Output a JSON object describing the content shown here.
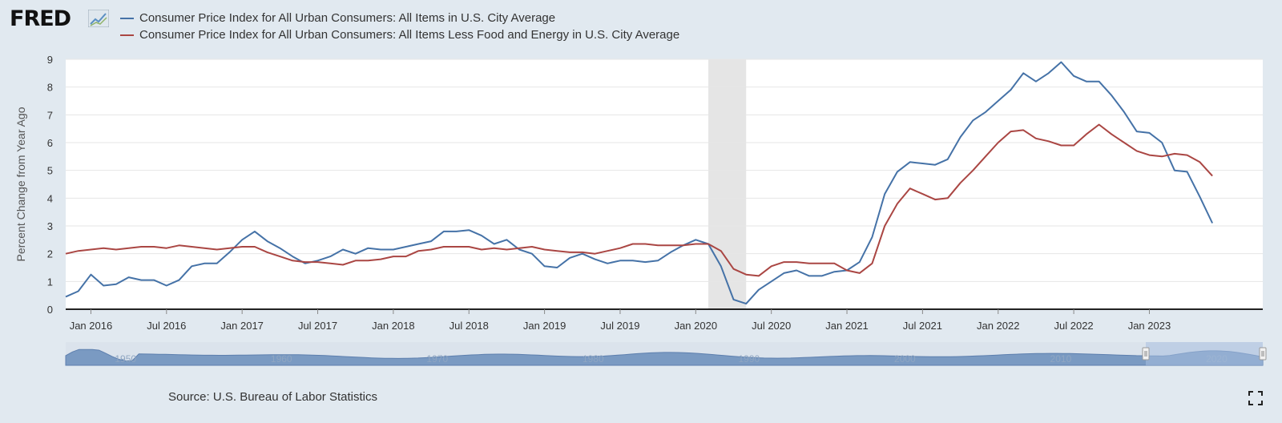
{
  "brand": {
    "logo_text": "FRED",
    "logo_icon": "chart-line-icon"
  },
  "source_text": "Source: U.S. Bureau of Labor Statistics",
  "fullscreen_icon": "fullscreen-icon",
  "colors": {
    "background": "#e1e9f0",
    "plot_bg": "#ffffff",
    "series1": "#4572a7",
    "series2": "#aa4643",
    "recession": "#e5e5e5",
    "navigator_fill": "#7a9ac2",
    "navigator_window": "#a8c0e0"
  },
  "chart_data": {
    "type": "line",
    "ylabel": "Percent Change from Year Ago",
    "ylim": [
      0,
      9
    ],
    "yticks": [
      "0",
      "1",
      "2",
      "3",
      "4",
      "5",
      "6",
      "7",
      "8",
      "9"
    ],
    "x_range": [
      "2015-11",
      "2023-10"
    ],
    "xticks": [
      {
        "date": "2016-01",
        "label": "Jan 2016"
      },
      {
        "date": "2016-07",
        "label": "Jul 2016"
      },
      {
        "date": "2017-01",
        "label": "Jan 2017"
      },
      {
        "date": "2017-07",
        "label": "Jul 2017"
      },
      {
        "date": "2018-01",
        "label": "Jan 2018"
      },
      {
        "date": "2018-07",
        "label": "Jul 2018"
      },
      {
        "date": "2019-01",
        "label": "Jan 2019"
      },
      {
        "date": "2019-07",
        "label": "Jul 2019"
      },
      {
        "date": "2020-01",
        "label": "Jan 2020"
      },
      {
        "date": "2020-07",
        "label": "Jul 2020"
      },
      {
        "date": "2021-01",
        "label": "Jan 2021"
      },
      {
        "date": "2021-07",
        "label": "Jul 2021"
      },
      {
        "date": "2022-01",
        "label": "Jan 2022"
      },
      {
        "date": "2022-07",
        "label": "Jul 2022"
      },
      {
        "date": "2023-01",
        "label": "Jan 2023"
      }
    ],
    "recessions": [
      {
        "start": "2020-02",
        "end": "2020-04"
      }
    ],
    "grid": true,
    "legend_position": "top-left",
    "series": [
      {
        "name": "Consumer Price Index for All Urban Consumers: All Items in U.S. City Average",
        "color": "#4572a7",
        "values": [
          0.45,
          0.65,
          1.25,
          0.85,
          0.9,
          1.15,
          1.05,
          1.05,
          0.85,
          1.05,
          1.55,
          1.65,
          1.65,
          2.05,
          2.5,
          2.8,
          2.45,
          2.2,
          1.9,
          1.65,
          1.75,
          1.9,
          2.15,
          2.0,
          2.2,
          2.15,
          2.15,
          2.25,
          2.35,
          2.45,
          2.8,
          2.8,
          2.85,
          2.65,
          2.35,
          2.5,
          2.15,
          2.0,
          1.55,
          1.5,
          1.85,
          2.0,
          1.8,
          1.65,
          1.75,
          1.75,
          1.7,
          1.75,
          2.05,
          2.3,
          2.5,
          2.35,
          1.55,
          0.35,
          0.2,
          0.7,
          1.0,
          1.3,
          1.4,
          1.2,
          1.2,
          1.35,
          1.4,
          1.7,
          2.6,
          4.15,
          4.95,
          5.3,
          5.25,
          5.2,
          5.4,
          6.2,
          6.8,
          7.1,
          7.5,
          7.9,
          8.5,
          8.2,
          8.5,
          8.9,
          8.4,
          8.2,
          8.2,
          7.7,
          7.1,
          6.4,
          6.35,
          6.0,
          5.0,
          4.95,
          4.05,
          3.1
        ]
      },
      {
        "name": "Consumer Price Index for All Urban Consumers: All Items Less Food and Energy in U.S. City Average",
        "color": "#aa4643",
        "values": [
          2.0,
          2.1,
          2.15,
          2.2,
          2.15,
          2.2,
          2.25,
          2.25,
          2.2,
          2.3,
          2.25,
          2.2,
          2.15,
          2.2,
          2.25,
          2.25,
          2.05,
          1.9,
          1.75,
          1.7,
          1.7,
          1.65,
          1.6,
          1.75,
          1.75,
          1.8,
          1.9,
          1.9,
          2.1,
          2.15,
          2.25,
          2.25,
          2.25,
          2.15,
          2.2,
          2.15,
          2.2,
          2.25,
          2.15,
          2.1,
          2.05,
          2.05,
          2.0,
          2.1,
          2.2,
          2.35,
          2.35,
          2.3,
          2.3,
          2.3,
          2.35,
          2.35,
          2.1,
          1.45,
          1.25,
          1.2,
          1.55,
          1.7,
          1.7,
          1.65,
          1.65,
          1.65,
          1.4,
          1.3,
          1.65,
          3.0,
          3.8,
          4.35,
          4.15,
          3.95,
          4.0,
          4.55,
          5.0,
          5.5,
          6.0,
          6.4,
          6.45,
          6.15,
          6.05,
          5.9,
          5.9,
          6.3,
          6.65,
          6.3,
          6.0,
          5.7,
          5.55,
          5.5,
          5.6,
          5.55,
          5.3,
          4.8
        ]
      }
    ],
    "navigator": {
      "tick_labels": [
        "1950",
        "1960",
        "1970",
        "1980",
        "1990",
        "2000",
        "2010",
        "2020"
      ],
      "window": [
        "2015-11",
        "2023-10"
      ]
    }
  }
}
